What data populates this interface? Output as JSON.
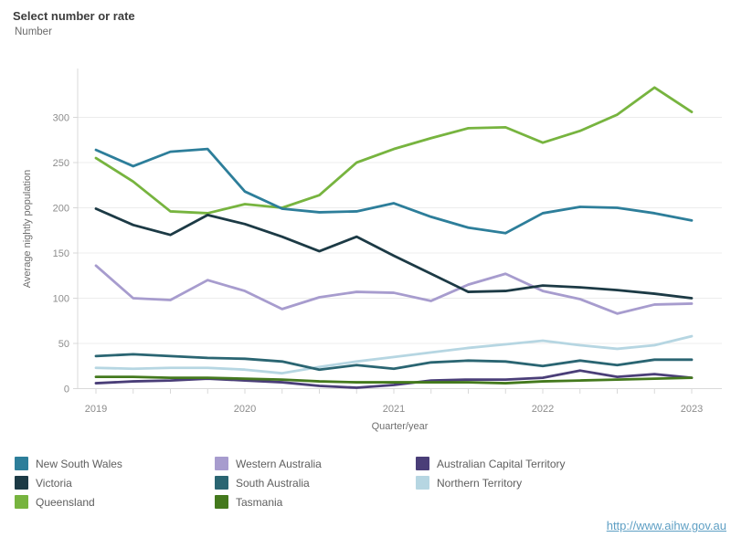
{
  "control": {
    "label": "Select number or rate",
    "value": "Number"
  },
  "footer": {
    "link_text": "http://www.aihw.gov.au"
  },
  "chart_data": {
    "type": "line",
    "title": "",
    "xlabel": "Quarter/year",
    "ylabel": "Average nightly population",
    "x_tick_labels": [
      "2019",
      "2020",
      "2021",
      "2022",
      "2023"
    ],
    "y_ticks": [
      0,
      50,
      100,
      150,
      200,
      250,
      300
    ],
    "ylim": [
      0,
      340
    ],
    "grid": true,
    "legend_position": "bottom",
    "quarters": [
      "2019 Q1",
      "2019 Q2",
      "2019 Q3",
      "2019 Q4",
      "2020 Q1",
      "2020 Q2",
      "2020 Q3",
      "2020 Q4",
      "2021 Q1",
      "2021 Q2",
      "2021 Q3",
      "2021 Q4",
      "2022 Q1",
      "2022 Q2",
      "2022 Q3",
      "2022 Q4",
      "2023 Q1"
    ],
    "series": [
      {
        "name": "Northern Territory",
        "color": "#b6d6e2",
        "values": [
          23,
          22,
          23,
          23,
          21,
          17,
          24,
          30,
          35,
          40,
          45,
          49,
          53,
          48,
          44,
          48,
          58
        ]
      },
      {
        "name": "Australian Capital Territory",
        "color": "#4a3e78",
        "values": [
          6,
          8,
          9,
          11,
          9,
          7,
          3,
          1,
          4,
          9,
          10,
          10,
          12,
          20,
          13,
          16,
          12
        ]
      },
      {
        "name": "Tasmania",
        "color": "#44791d",
        "values": [
          13,
          13,
          12,
          12,
          11,
          10,
          8,
          7,
          7,
          7,
          7,
          6,
          8,
          9,
          10,
          11,
          12
        ]
      },
      {
        "name": "South Australia",
        "color": "#2a6572",
        "values": [
          36,
          38,
          36,
          34,
          33,
          30,
          21,
          26,
          22,
          29,
          31,
          30,
          25,
          31,
          26,
          32,
          32
        ]
      },
      {
        "name": "Western Australia",
        "color": "#a79cce",
        "values": [
          136,
          100,
          98,
          120,
          108,
          88,
          101,
          107,
          106,
          97,
          115,
          127,
          108,
          99,
          83,
          93,
          94
        ]
      },
      {
        "name": "Queensland",
        "color": "#77b43f",
        "values": [
          255,
          229,
          196,
          194,
          204,
          200,
          214,
          250,
          265,
          277,
          288,
          289,
          272,
          285,
          303,
          333,
          306
        ]
      },
      {
        "name": "Victoria",
        "color": "#1c3a45",
        "values": [
          199,
          181,
          170,
          192,
          182,
          168,
          152,
          168,
          147,
          127,
          107,
          108,
          114,
          112,
          109,
          105,
          100
        ]
      },
      {
        "name": "New South Wales",
        "color": "#2d7e9a",
        "values": [
          264,
          246,
          262,
          265,
          218,
          199,
          195,
          196,
          205,
          190,
          178,
          172,
          194,
          201,
          200,
          194,
          186
        ]
      }
    ],
    "legend_columns": [
      [
        "New South Wales",
        "Victoria",
        "Queensland"
      ],
      [
        "Western Australia",
        "South Australia",
        "Tasmania"
      ],
      [
        "Australian Capital Territory",
        "Northern Territory"
      ]
    ]
  }
}
